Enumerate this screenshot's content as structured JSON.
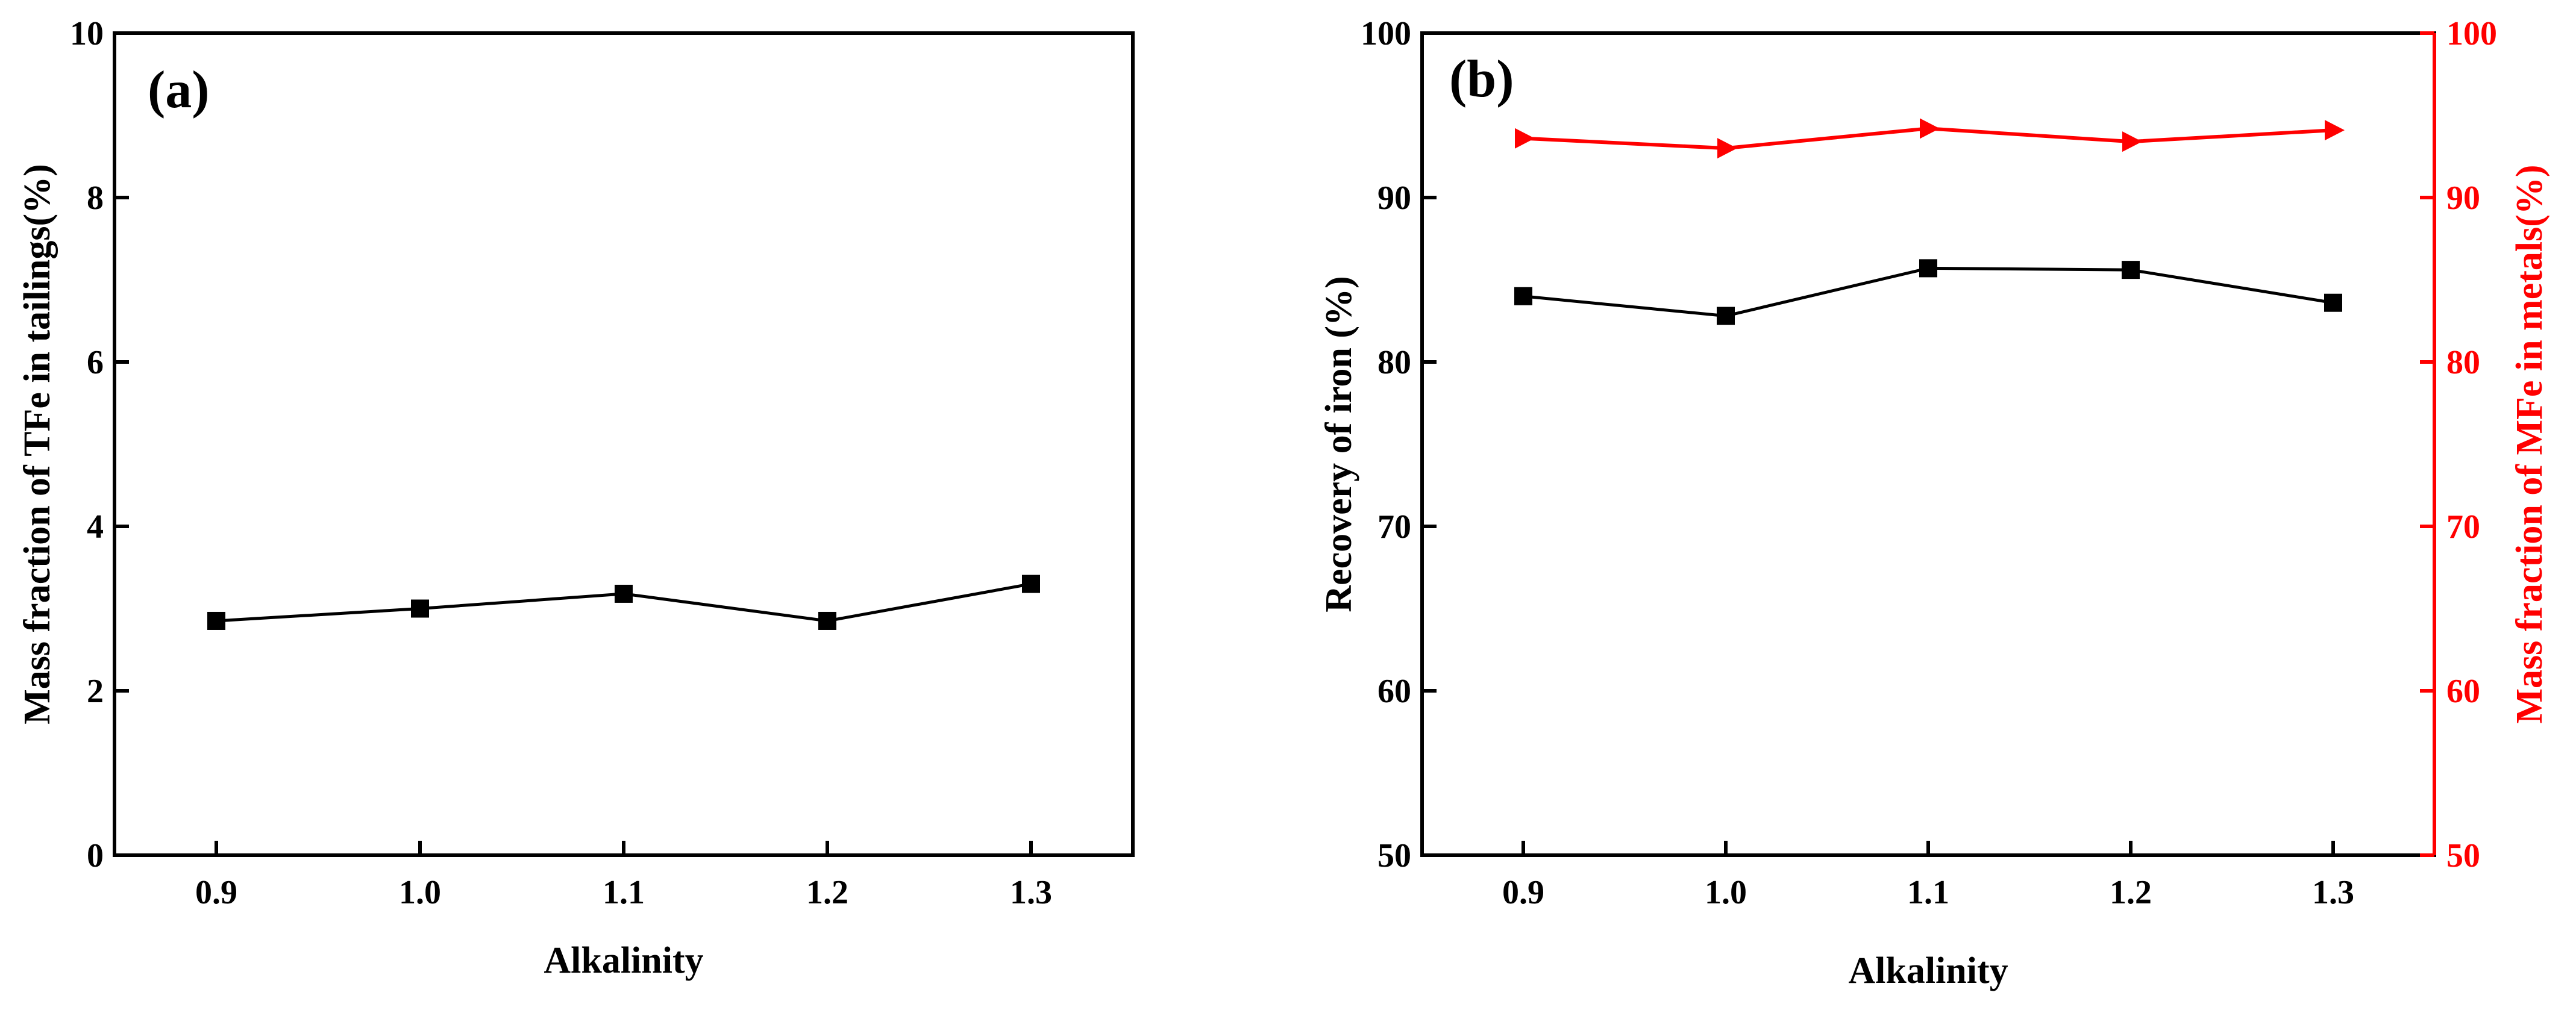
{
  "colors": {
    "axis": "#000000",
    "series_black": "#000000",
    "series_red": "#ff0000"
  },
  "chart_data": [
    {
      "panel": "(a)",
      "type": "line",
      "xlabel": "Alkalinity",
      "ylabel": "Mass fraction of  TFe in tailings(%)",
      "x": [
        0.9,
        1.0,
        1.1,
        1.2,
        1.3
      ],
      "x_tick_labels": [
        "0.9",
        "1.0",
        "1.1",
        "1.2",
        "1.3"
      ],
      "xlim": [
        0.85,
        1.35
      ],
      "ylim": [
        0,
        10
      ],
      "y_ticks": [
        0,
        2,
        4,
        6,
        8,
        10
      ],
      "y_tick_labels": [
        "0",
        "2",
        "4",
        "6",
        "8",
        "10"
      ],
      "grid": false,
      "series": [
        {
          "name": "Mass fraction of TFe in tailings",
          "marker": "square",
          "color": "#000000",
          "axis": "left",
          "values": [
            2.85,
            3.0,
            3.18,
            2.85,
            3.3
          ]
        }
      ]
    },
    {
      "panel": "(b)",
      "type": "line",
      "xlabel": "Alkalinity",
      "ylabel": "Recovery of iron (%)",
      "ylabel_right": "Mass fraction of MFe in metals(%)",
      "x": [
        0.9,
        1.0,
        1.1,
        1.2,
        1.3
      ],
      "x_tick_labels": [
        "0.9",
        "1.0",
        "1.1",
        "1.2",
        "1.3"
      ],
      "xlim": [
        0.85,
        1.35
      ],
      "ylim": [
        50,
        100
      ],
      "ylim_right": [
        50,
        100
      ],
      "y_ticks": [
        50,
        60,
        70,
        80,
        90,
        100
      ],
      "y_tick_labels": [
        "50",
        "60",
        "70",
        "80",
        "90",
        "100"
      ],
      "y_tick_labels_right": [
        "50",
        "60",
        "70",
        "80",
        "90",
        "100"
      ],
      "grid": false,
      "series": [
        {
          "name": "Recovery of iron",
          "marker": "square",
          "color": "#000000",
          "axis": "left",
          "values": [
            84.0,
            82.8,
            85.7,
            85.6,
            83.6
          ]
        },
        {
          "name": "Mass fraction of MFe in metals",
          "marker": "triangle-right",
          "color": "#ff0000",
          "axis": "right",
          "values": [
            93.6,
            93.0,
            94.2,
            93.4,
            94.1
          ]
        }
      ]
    }
  ]
}
